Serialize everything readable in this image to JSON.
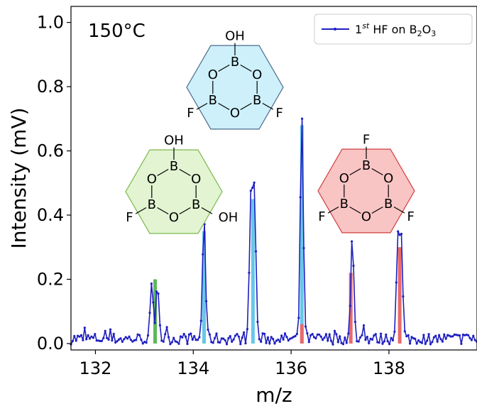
{
  "chart_data": {
    "type": "line",
    "xlabel": "m/z",
    "ylabel": "Intensity (mV)",
    "xlim": [
      131.5,
      139.8
    ],
    "ylim": [
      -0.02,
      1.05
    ],
    "xticks": [
      132,
      134,
      136,
      138
    ],
    "yticks": [
      0.0,
      0.2,
      0.4,
      0.6,
      0.8,
      1.0
    ],
    "xtick_labels": [
      "132",
      "134",
      "136",
      "138"
    ],
    "ytick_labels": [
      "0.0",
      "0.2",
      "0.4",
      "0.6",
      "0.8",
      "1.0"
    ],
    "grid": false,
    "legend_position": "top-right",
    "annotation": "150°C",
    "series": [
      {
        "name": "1st HF on B2O3",
        "legend_main": "1",
        "legend_sup": "st",
        "legend_rest": " HF on B",
        "legend_sub1": "2",
        "legend_mid": "O",
        "legend_sub2": "3",
        "color": "#1f1fc0",
        "peaks": [
          {
            "x": 133.15,
            "y": 0.16
          },
          {
            "x": 133.27,
            "y": 0.17
          },
          {
            "x": 134.22,
            "y": 0.38
          },
          {
            "x": 135.18,
            "y": 0.46
          },
          {
            "x": 135.25,
            "y": 0.45
          },
          {
            "x": 136.22,
            "y": 0.7
          },
          {
            "x": 137.25,
            "y": 0.31
          },
          {
            "x": 138.18,
            "y": 0.31
          },
          {
            "x": 138.25,
            "y": 0.31
          }
        ],
        "baseline": 0.015
      }
    ],
    "reference_bars": [
      {
        "x": 133.22,
        "y": 0.2,
        "color": "#5cb85c"
      },
      {
        "x": 134.22,
        "y": 0.13,
        "color": "#5cb85c"
      },
      {
        "x": 134.22,
        "y": 0.35,
        "color": "#66c8e8"
      },
      {
        "x": 135.22,
        "y": 0.45,
        "color": "#66c8e8"
      },
      {
        "x": 136.22,
        "y": 0.68,
        "color": "#66c8e8"
      },
      {
        "x": 136.22,
        "y": 0.06,
        "color": "#e86a6a"
      },
      {
        "x": 137.22,
        "y": 0.22,
        "color": "#e86a6a"
      },
      {
        "x": 138.22,
        "y": 0.3,
        "color": "#e86a6a"
      }
    ],
    "molecules": [
      {
        "id": "blue",
        "fill": "#cdf0fa",
        "stroke": "#4a6a8a",
        "atoms": {
          "top": "OH",
          "ring_top": "B",
          "ul": "O",
          "ur": "O",
          "ll": "B",
          "lr": "B",
          "bottom": "O",
          "left_sub": "F",
          "right_sub": "F"
        }
      },
      {
        "id": "green",
        "fill": "#e2f4d2",
        "stroke": "#7ab84a",
        "atoms": {
          "top": "OH",
          "ring_top": "B",
          "ul": "O",
          "ur": "O",
          "ll": "B",
          "lr": "B",
          "bottom": "O",
          "left_sub": "F",
          "right_sub": "OH"
        }
      },
      {
        "id": "red",
        "fill": "#f9c4c4",
        "stroke": "#d23c3c",
        "atoms": {
          "top": "F",
          "ring_top": "B",
          "ul": "O",
          "ur": "O",
          "ll": "B",
          "lr": "B",
          "bottom": "O",
          "left_sub": "F",
          "right_sub": "F"
        }
      }
    ]
  }
}
